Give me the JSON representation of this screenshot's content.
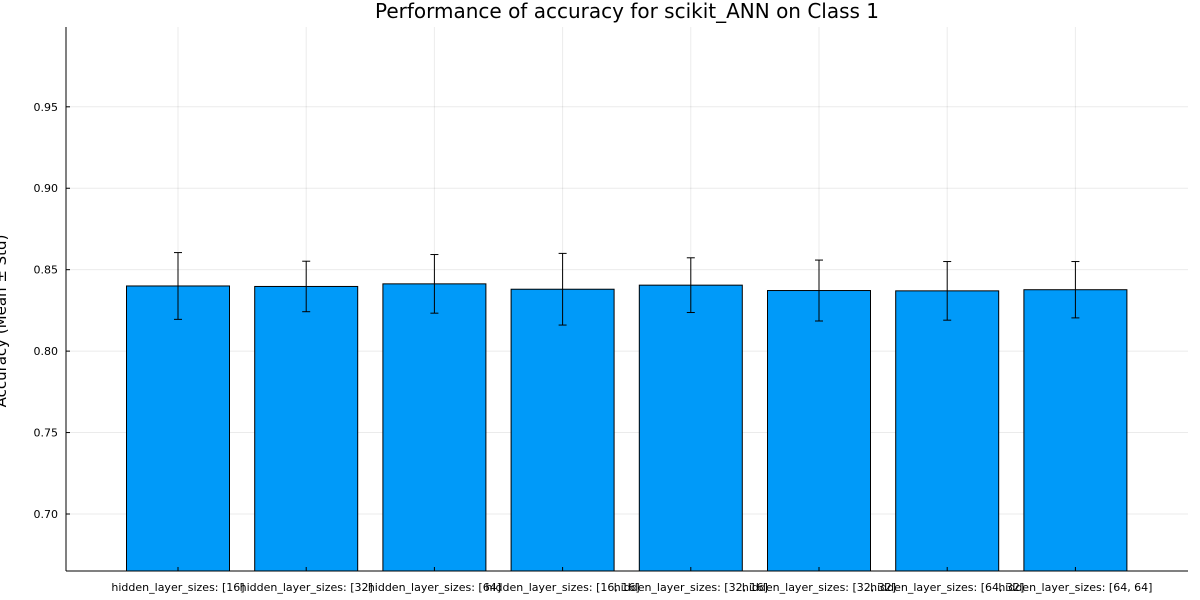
{
  "chart_data": {
    "type": "bar",
    "title": "Performance of accuracy for scikit_ANN on Class 1",
    "xlabel": "",
    "ylabel": "Accuracy (Mean ± Std)",
    "categories": [
      "hidden_layer_sizes: [16]",
      "hidden_layer_sizes: [32]",
      "hidden_layer_sizes: [64]",
      "hidden_layer_sizes: [16, 16]",
      "hidden_layer_sizes: [32, 16]",
      "hidden_layer_sizes: [32, 32]",
      "hidden_layer_sizes: [64, 32]",
      "hidden_layer_sizes: [64, 64]"
    ],
    "values": [
      0.84,
      0.8397,
      0.8413,
      0.838,
      0.8405,
      0.8372,
      0.837,
      0.8377
    ],
    "error": [
      0.0205,
      0.0155,
      0.018,
      0.022,
      0.0168,
      0.0187,
      0.018,
      0.0173
    ],
    "yticks": [
      "0.70",
      "0.75",
      "0.80",
      "0.85",
      "0.90",
      "0.95"
    ],
    "ylim": [
      0.665,
      0.999
    ],
    "grid": true,
    "legend": "none",
    "bar_color": "#009AF9",
    "edge_color": "#000000",
    "error_color": "#000000"
  }
}
